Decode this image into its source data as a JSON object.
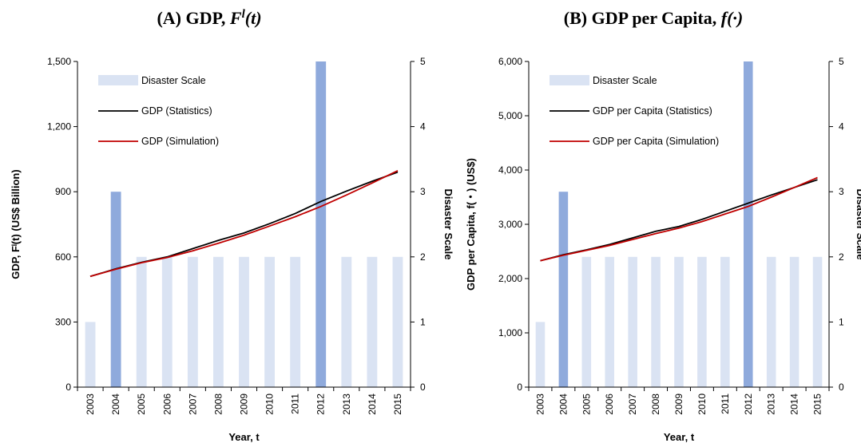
{
  "colors": {
    "bar_light": "#dae3f3",
    "bar_dark": "#8faadc",
    "statistics": "#000000",
    "simulation": "#c00000"
  },
  "chart_data": [
    {
      "type": "bar+line",
      "title_prefix": "(A) GDP, ",
      "title_symbol": "F",
      "title_sup": "l",
      "title_suffix": "(t)",
      "xlabel": "Year, t",
      "ylabel": "GDP, Fˡ(t)  (US$ Billion)",
      "y2label": "Disaster Scale",
      "categories": [
        "2003",
        "2004",
        "2005",
        "2006",
        "2007",
        "2008",
        "2009",
        "2010",
        "2011",
        "2012",
        "2013",
        "2014",
        "2015"
      ],
      "ylim": [
        0,
        1500
      ],
      "yticks": [
        0,
        300,
        600,
        900,
        1200,
        1500
      ],
      "yticklabels": [
        "0",
        "300",
        "600",
        "900",
        "1,200",
        "1,500"
      ],
      "y2lim": [
        0,
        5
      ],
      "y2ticks": [
        0,
        1,
        2,
        3,
        4,
        5
      ],
      "y2ticklabels": [
        "0",
        "1",
        "2",
        "3",
        "4",
        "5"
      ],
      "legend_position": "top-left",
      "series": [
        {
          "name": "Disaster Scale",
          "kind": "bar",
          "axis": "right",
          "values": [
            1,
            3,
            2,
            2,
            2,
            2,
            2,
            2,
            2,
            5,
            2,
            2,
            2
          ]
        },
        {
          "name": "GDP (Statistics)",
          "kind": "line",
          "axis": "left",
          "values": [
            510,
            545,
            575,
            600,
            638,
            676,
            710,
            753,
            800,
            855,
            903,
            948,
            990
          ]
        },
        {
          "name": "GDP (Simulation)",
          "kind": "line",
          "axis": "left",
          "values": [
            510,
            543,
            573,
            597,
            628,
            663,
            700,
            742,
            785,
            832,
            885,
            940,
            997
          ]
        }
      ]
    },
    {
      "type": "bar+line",
      "title_prefix": "(B) GDP per Capita, ",
      "title_symbol": "f",
      "title_sup": "",
      "title_suffix": "(·)",
      "xlabel": "Year, t",
      "ylabel": "GDP per Capita, f(・)  (US$)",
      "y2label": "Disaster Scale",
      "categories": [
        "2003",
        "2004",
        "2005",
        "2006",
        "2007",
        "2008",
        "2009",
        "2010",
        "2011",
        "2012",
        "2013",
        "2014",
        "2015"
      ],
      "ylim": [
        0,
        6000
      ],
      "yticks": [
        0,
        1000,
        2000,
        3000,
        4000,
        5000,
        6000
      ],
      "yticklabels": [
        "0",
        "1,000",
        "2,000",
        "3,000",
        "4,000",
        "5,000",
        "6,000"
      ],
      "y2lim": [
        0,
        5
      ],
      "y2ticks": [
        0,
        1,
        2,
        3,
        4,
        5
      ],
      "y2ticklabels": [
        "0",
        "1",
        "2",
        "3",
        "4",
        "5"
      ],
      "legend_position": "top-left",
      "series": [
        {
          "name": "Disaster Scale",
          "kind": "bar",
          "axis": "right",
          "values": [
            1,
            3,
            2,
            2,
            2,
            2,
            2,
            2,
            2,
            5,
            2,
            2,
            2
          ]
        },
        {
          "name": "GDP per Capita (Statistics)",
          "kind": "line",
          "axis": "left",
          "values": [
            2330,
            2440,
            2530,
            2630,
            2750,
            2870,
            2960,
            3090,
            3240,
            3390,
            3540,
            3680,
            3820
          ]
        },
        {
          "name": "GDP per Capita (Simulation)",
          "kind": "line",
          "axis": "left",
          "values": [
            2330,
            2430,
            2520,
            2610,
            2720,
            2830,
            2930,
            3050,
            3190,
            3330,
            3500,
            3680,
            3860
          ]
        }
      ]
    }
  ]
}
